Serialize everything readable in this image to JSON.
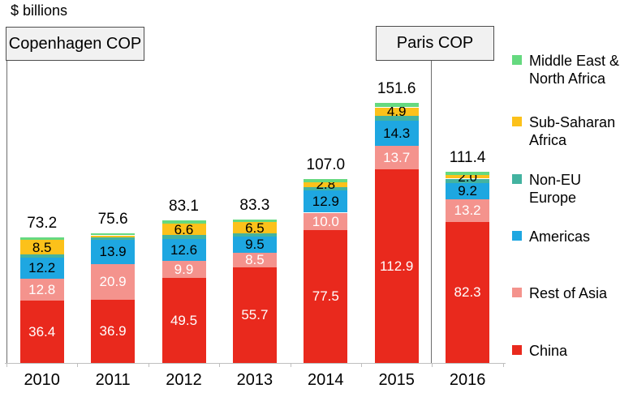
{
  "units_label": "$ billions",
  "annotations": {
    "copenhagen": {
      "label": "Copenhagen COP"
    },
    "paris": {
      "label": "Paris COP"
    }
  },
  "chart_data": {
    "type": "stacked-bar",
    "title": "$ billions",
    "categories": [
      "2010",
      "2011",
      "2012",
      "2013",
      "2014",
      "2015",
      "2016"
    ],
    "totals": [
      "73.2",
      "75.6",
      "83.1",
      "83.3",
      "107.0",
      "151.6",
      "111.4"
    ],
    "annotations": [
      "Copenhagen COP at 2010",
      "Paris COP between 2015 and 2016"
    ],
    "legend_position": "right",
    "grid": false,
    "series": [
      {
        "name": "China",
        "color": "#e9291d",
        "label_color": "#ffffff",
        "values": [
          36.4,
          36.9,
          49.5,
          55.7,
          77.5,
          112.9,
          82.3
        ],
        "labels": [
          "36.4",
          "36.9",
          "49.5",
          "55.7",
          "77.5",
          "112.9",
          "82.3"
        ]
      },
      {
        "name": "Rest of Asia",
        "color": "#f4938d",
        "label_color": "#ffffff",
        "values": [
          12.8,
          20.9,
          9.9,
          8.5,
          10.0,
          13.7,
          13.2
        ],
        "labels": [
          "12.8",
          "20.9",
          "9.9",
          "8.5",
          "10.0",
          "13.7",
          "13.2"
        ]
      },
      {
        "name": "Americas",
        "color": "#1ea7e1",
        "label_color": "#000000",
        "values": [
          12.2,
          13.9,
          12.6,
          9.5,
          12.9,
          14.3,
          9.2
        ],
        "labels": [
          "12.2",
          "13.9",
          "12.6",
          "9.5",
          "12.9",
          "14.3",
          "9.2"
        ]
      },
      {
        "name": "Non-EU Europe",
        "color": "#43b3a0",
        "label_color": "#000000",
        "values": [
          1.6,
          1.4,
          2.5,
          1.7,
          2.0,
          3.0,
          2.6
        ],
        "labels": [
          null,
          null,
          null,
          null,
          null,
          null,
          null
        ]
      },
      {
        "name": "Sub-Saharan Africa",
        "color": "#fcc11a",
        "label_color": "#000000",
        "values": [
          8.5,
          1.2,
          6.6,
          6.5,
          2.8,
          4.9,
          2.0
        ],
        "labels": [
          "8.5",
          null,
          "6.6",
          "6.5",
          "2.8",
          "4.9",
          "2.0"
        ]
      },
      {
        "name": "Middle East & North Africa",
        "color": "#65d97f",
        "label_color": "#000000",
        "values": [
          1.7,
          1.3,
          2.0,
          1.4,
          1.8,
          2.8,
          2.1
        ],
        "labels": [
          null,
          null,
          null,
          null,
          null,
          null,
          null
        ]
      }
    ]
  }
}
